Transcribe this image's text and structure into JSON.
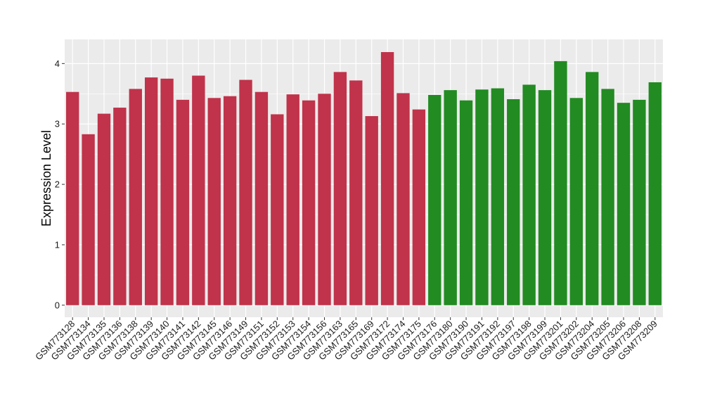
{
  "chart_data": {
    "type": "bar",
    "title": "",
    "xlabel": "",
    "ylabel": "Expression Level",
    "ylim": [
      -0.2,
      4.4
    ],
    "yticks": [
      0,
      1,
      2,
      3,
      4
    ],
    "grid": true,
    "legend": "none",
    "colors": {
      "group1": "#c0334a",
      "group2": "#228b22",
      "panel": "#ebebeb",
      "gridline": "#ffffff"
    },
    "categories": [
      "GSM773128",
      "GSM773134",
      "GSM773135",
      "GSM773136",
      "GSM773138",
      "GSM773139",
      "GSM773140",
      "GSM773141",
      "GSM773142",
      "GSM773145",
      "GSM773146",
      "GSM773149",
      "GSM773151",
      "GSM773152",
      "GSM773153",
      "GSM773154",
      "GSM773156",
      "GSM773163",
      "GSM773165",
      "GSM773169",
      "GSM773172",
      "GSM773174",
      "GSM773175",
      "GSM773176",
      "GSM773180",
      "GSM773190",
      "GSM773191",
      "GSM773192",
      "GSM773197",
      "GSM773198",
      "GSM773199",
      "GSM773201",
      "GSM773202",
      "GSM773204",
      "GSM773205",
      "GSM773206",
      "GSM773208",
      "GSM773209"
    ],
    "values": [
      3.53,
      2.83,
      3.17,
      3.27,
      3.58,
      3.77,
      3.75,
      3.4,
      3.8,
      3.43,
      3.46,
      3.73,
      3.53,
      3.16,
      3.49,
      3.39,
      3.5,
      3.86,
      3.72,
      3.13,
      4.19,
      3.51,
      3.24,
      3.48,
      3.56,
      3.39,
      3.57,
      3.59,
      3.41,
      3.65,
      3.56,
      4.04,
      3.43,
      3.86,
      3.58,
      3.35,
      3.4,
      3.69
    ],
    "groups": [
      1,
      1,
      1,
      1,
      1,
      1,
      1,
      1,
      1,
      1,
      1,
      1,
      1,
      1,
      1,
      1,
      1,
      1,
      1,
      1,
      1,
      1,
      1,
      2,
      2,
      2,
      2,
      2,
      2,
      2,
      2,
      2,
      2,
      2,
      2,
      2,
      2,
      2
    ]
  }
}
